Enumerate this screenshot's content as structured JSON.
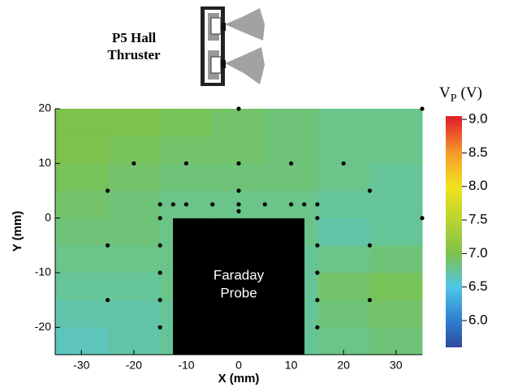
{
  "chart_data": {
    "type": "heatmap",
    "title": [
      "P5 Hall",
      "Thruster"
    ],
    "xlabel": "X (mm)",
    "ylabel": "Y (mm)",
    "colorbar_symbol": "V",
    "colorbar_subscript": "P",
    "colorbar_unit": "(V)",
    "annotation": [
      "Faraday",
      "Probe"
    ],
    "xlim": [
      -35,
      35
    ],
    "ylim": [
      -25,
      20
    ],
    "xticks": [
      -30,
      -20,
      -10,
      0,
      10,
      20,
      30
    ],
    "yticks": [
      20,
      10,
      0,
      -10,
      -20
    ],
    "x_edges": [
      -35,
      -25,
      -15,
      -5,
      5,
      15,
      25,
      35
    ],
    "y_edges": [
      20,
      15,
      10,
      5,
      0,
      -5,
      -10,
      -15,
      -20,
      -25
    ],
    "values": [
      [
        7.0,
        7.0,
        6.95,
        6.9,
        6.85,
        6.8,
        6.8
      ],
      [
        7.0,
        6.95,
        6.9,
        6.9,
        6.85,
        6.8,
        6.8
      ],
      [
        6.95,
        6.9,
        6.85,
        6.85,
        6.85,
        6.8,
        6.75
      ],
      [
        6.9,
        6.85,
        6.8,
        6.8,
        6.8,
        6.75,
        6.75
      ],
      [
        6.85,
        6.85,
        6.8,
        6.8,
        6.8,
        6.7,
        6.75
      ],
      [
        6.8,
        6.8,
        6.8,
        6.8,
        6.75,
        6.8,
        6.85
      ],
      [
        6.75,
        6.75,
        6.8,
        6.8,
        6.75,
        6.9,
        6.95
      ],
      [
        6.7,
        6.7,
        6.75,
        6.75,
        6.75,
        6.85,
        6.9
      ],
      [
        6.65,
        6.7,
        6.75,
        6.75,
        6.75,
        6.8,
        6.85
      ]
    ],
    "clim": [
      5.6,
      9.05
    ],
    "colormap": [
      {
        "value": 5.6,
        "color": "#2d4aa0"
      },
      {
        "value": 6.0,
        "color": "#2e7fd0"
      },
      {
        "value": 6.5,
        "color": "#4fc6e8"
      },
      {
        "value": 7.0,
        "color": "#7dc24a"
      },
      {
        "value": 7.5,
        "color": "#b8d432"
      },
      {
        "value": 8.0,
        "color": "#f2e21e"
      },
      {
        "value": 8.5,
        "color": "#f59a2a"
      },
      {
        "value": 9.0,
        "color": "#e3242b"
      }
    ],
    "cticks": [
      {
        "value": 6.0,
        "label": "6.0"
      },
      {
        "value": 6.5,
        "label": "6.5"
      },
      {
        "value": 7.0,
        "label": "7.0"
      },
      {
        "value": 7.5,
        "label": "7.5"
      },
      {
        "value": 8.0,
        "label": "8.0"
      },
      {
        "value": 8.5,
        "label": "8.5"
      },
      {
        "value": 9.0,
        "label": "9.0"
      }
    ],
    "points": {
      "color": "#000000",
      "x": [
        0,
        35,
        -20,
        -10,
        0,
        10,
        20,
        -25,
        0,
        25,
        -15,
        -12.5,
        -10,
        -5,
        0,
        5,
        10,
        12.5,
        15,
        0,
        -15,
        15,
        35,
        -25,
        -15,
        15,
        25,
        -15,
        15,
        -25,
        -15,
        15,
        25,
        -15,
        15
      ],
      "y": [
        20,
        20,
        10,
        10,
        10,
        10,
        10,
        5,
        5,
        5,
        2.5,
        2.5,
        2.5,
        2.5,
        2.5,
        2.5,
        2.5,
        2.5,
        2.5,
        1.25,
        0,
        0,
        0,
        -5,
        -5,
        -5,
        -5,
        -10,
        -10,
        -15,
        -15,
        -15,
        -15,
        -20,
        -20
      ]
    }
  }
}
